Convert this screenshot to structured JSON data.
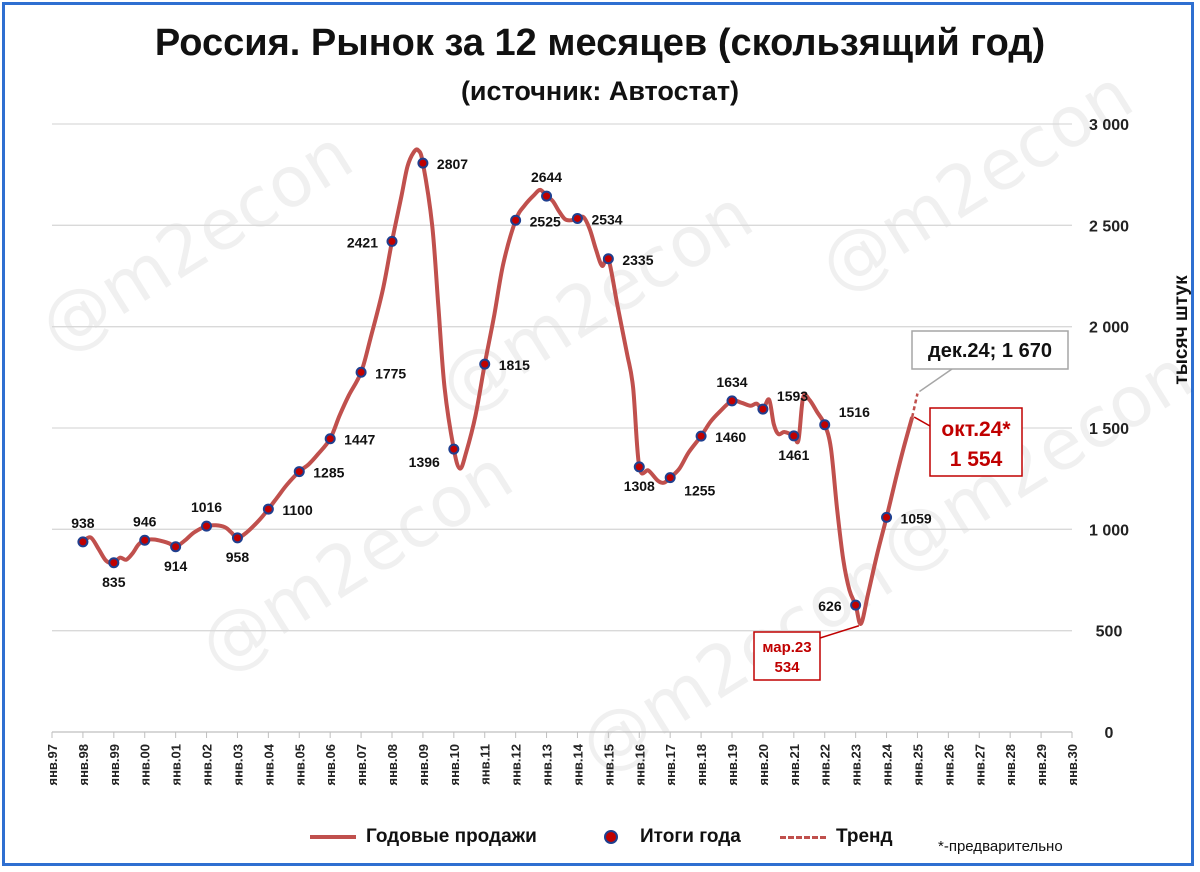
{
  "title": "Россия. Рынок за 12 месяцев (скользящий год)",
  "subtitle": "(источник: Автостат)",
  "watermark": "@m2econ",
  "legend": {
    "line": "Годовые продажи",
    "dots": "Итоги года",
    "trend": "Тренд"
  },
  "note": "*-предварительно",
  "colors": {
    "line": "#c0504d",
    "dot_fill": "#c00000",
    "dot_border": "#1f3f8f",
    "accent": "#c00000",
    "grid": "#d9d9d9",
    "frame": "#2e6fd1"
  },
  "chart_data": {
    "type": "line",
    "ylabel": "тысяч штук",
    "ylim": [
      0,
      3000
    ],
    "yticks": [
      0,
      500,
      1000,
      1500,
      2000,
      2500,
      3000
    ],
    "ytick_labels": [
      "0",
      "500",
      "1 000",
      "1 500",
      "2 000",
      "2 500",
      "3 000"
    ],
    "y_axis_side": "right",
    "x_range": [
      1997,
      2030
    ],
    "xtick_labels": [
      "янв.97",
      "янв.98",
      "янв.99",
      "янв.00",
      "янв.01",
      "янв.02",
      "янв.03",
      "янв.04",
      "янв.05",
      "янв.06",
      "янв.07",
      "янв.08",
      "янв.09",
      "янв.10",
      "янв.11",
      "янв.12",
      "янв.13",
      "янв.14",
      "янв.15",
      "янв.16",
      "янв.17",
      "янв.18",
      "янв.19",
      "янв.20",
      "янв.21",
      "янв.22",
      "янв.23",
      "янв.24",
      "янв.25",
      "янв.26",
      "янв.27",
      "янв.28",
      "янв.29",
      "янв.30"
    ],
    "series": [
      {
        "name": "Годовые продажи",
        "points": [
          [
            1998.0,
            938
          ],
          [
            1998.25,
            960
          ],
          [
            1998.5,
            905
          ],
          [
            1998.75,
            845
          ],
          [
            1999.0,
            835
          ],
          [
            1999.2,
            860
          ],
          [
            1999.4,
            850
          ],
          [
            1999.6,
            880
          ],
          [
            1999.8,
            925
          ],
          [
            2000.0,
            946
          ],
          [
            2000.3,
            950
          ],
          [
            2000.6,
            940
          ],
          [
            2000.8,
            930
          ],
          [
            2001.0,
            914
          ],
          [
            2001.3,
            945
          ],
          [
            2001.6,
            985
          ],
          [
            2002.0,
            1016
          ],
          [
            2002.3,
            1020
          ],
          [
            2002.6,
            1010
          ],
          [
            2002.8,
            985
          ],
          [
            2003.0,
            958
          ],
          [
            2003.3,
            985
          ],
          [
            2003.7,
            1045
          ],
          [
            2004.0,
            1100
          ],
          [
            2004.3,
            1160
          ],
          [
            2004.6,
            1220
          ],
          [
            2005.0,
            1285
          ],
          [
            2005.3,
            1320
          ],
          [
            2005.6,
            1370
          ],
          [
            2006.0,
            1447
          ],
          [
            2006.3,
            1560
          ],
          [
            2006.6,
            1660
          ],
          [
            2007.0,
            1775
          ],
          [
            2007.3,
            1940
          ],
          [
            2007.7,
            2180
          ],
          [
            2008.0,
            2421
          ],
          [
            2008.3,
            2640
          ],
          [
            2008.5,
            2790
          ],
          [
            2008.7,
            2860
          ],
          [
            2008.85,
            2870
          ],
          [
            2009.0,
            2807
          ],
          [
            2009.3,
            2500
          ],
          [
            2009.5,
            2100
          ],
          [
            2009.7,
            1700
          ],
          [
            2010.0,
            1396
          ],
          [
            2010.2,
            1300
          ],
          [
            2010.4,
            1380
          ],
          [
            2010.7,
            1560
          ],
          [
            2011.0,
            1815
          ],
          [
            2011.3,
            2050
          ],
          [
            2011.6,
            2310
          ],
          [
            2012.0,
            2525
          ],
          [
            2012.3,
            2600
          ],
          [
            2012.6,
            2650
          ],
          [
            2012.8,
            2675
          ],
          [
            2013.0,
            2644
          ],
          [
            2013.2,
            2620
          ],
          [
            2013.4,
            2570
          ],
          [
            2013.6,
            2530
          ],
          [
            2013.8,
            2525
          ],
          [
            2014.0,
            2534
          ],
          [
            2014.2,
            2540
          ],
          [
            2014.4,
            2480
          ],
          [
            2014.6,
            2380
          ],
          [
            2014.8,
            2300
          ],
          [
            2015.0,
            2335
          ],
          [
            2015.3,
            2100
          ],
          [
            2015.6,
            1870
          ],
          [
            2015.8,
            1700
          ],
          [
            2016.0,
            1308
          ],
          [
            2016.3,
            1290
          ],
          [
            2016.6,
            1240
          ],
          [
            2016.8,
            1230
          ],
          [
            2017.0,
            1255
          ],
          [
            2017.3,
            1300
          ],
          [
            2017.6,
            1380
          ],
          [
            2018.0,
            1460
          ],
          [
            2018.3,
            1530
          ],
          [
            2018.6,
            1580
          ],
          [
            2019.0,
            1634
          ],
          [
            2019.3,
            1625
          ],
          [
            2019.6,
            1610
          ],
          [
            2019.8,
            1620
          ],
          [
            2020.0,
            1593
          ],
          [
            2020.2,
            1640
          ],
          [
            2020.35,
            1520
          ],
          [
            2020.5,
            1470
          ],
          [
            2020.7,
            1480
          ],
          [
            2021.0,
            1461
          ],
          [
            2021.15,
            1440
          ],
          [
            2021.3,
            1650
          ],
          [
            2021.5,
            1640
          ],
          [
            2021.75,
            1580
          ],
          [
            2022.0,
            1516
          ],
          [
            2022.2,
            1400
          ],
          [
            2022.4,
            1100
          ],
          [
            2022.6,
            850
          ],
          [
            2022.8,
            700
          ],
          [
            2023.0,
            626
          ],
          [
            2023.17,
            534
          ],
          [
            2023.4,
            680
          ],
          [
            2023.7,
            880
          ],
          [
            2024.0,
            1059
          ],
          [
            2024.3,
            1250
          ],
          [
            2024.55,
            1400
          ],
          [
            2024.83,
            1554
          ]
        ]
      },
      {
        "name": "Итоги года",
        "points": [
          [
            1998,
            938
          ],
          [
            1999,
            835
          ],
          [
            2000,
            946
          ],
          [
            2001,
            914
          ],
          [
            2002,
            1016
          ],
          [
            2003,
            958
          ],
          [
            2004,
            1100
          ],
          [
            2005,
            1285
          ],
          [
            2006,
            1447
          ],
          [
            2007,
            1775
          ],
          [
            2008,
            2421
          ],
          [
            2009,
            2807
          ],
          [
            2010,
            1396
          ],
          [
            2011,
            1815
          ],
          [
            2012,
            2525
          ],
          [
            2013,
            2644
          ],
          [
            2014,
            2534
          ],
          [
            2015,
            2335
          ],
          [
            2016,
            1308
          ],
          [
            2017,
            1255
          ],
          [
            2018,
            1460
          ],
          [
            2019,
            1634
          ],
          [
            2020,
            1593
          ],
          [
            2021,
            1461
          ],
          [
            2022,
            1516
          ],
          [
            2023,
            626
          ],
          [
            2024,
            1059
          ]
        ]
      },
      {
        "name": "Тренд",
        "points": [
          [
            2024.83,
            1554
          ],
          [
            2025.0,
            1670
          ]
        ]
      }
    ],
    "data_labels": [
      {
        "x": 1998,
        "y": 938,
        "text": "938",
        "pos": "above"
      },
      {
        "x": 1999,
        "y": 835,
        "text": "835",
        "pos": "below"
      },
      {
        "x": 2000,
        "y": 946,
        "text": "946",
        "pos": "above"
      },
      {
        "x": 2001,
        "y": 914,
        "text": "914",
        "pos": "below"
      },
      {
        "x": 2002,
        "y": 1016,
        "text": "1016",
        "pos": "above"
      },
      {
        "x": 2003,
        "y": 958,
        "text": "958",
        "pos": "below"
      },
      {
        "x": 2004,
        "y": 1100,
        "text": "1100",
        "pos": "right"
      },
      {
        "x": 2005,
        "y": 1285,
        "text": "1285",
        "pos": "right"
      },
      {
        "x": 2006,
        "y": 1447,
        "text": "1447",
        "pos": "right"
      },
      {
        "x": 2007,
        "y": 1775,
        "text": "1775",
        "pos": "right"
      },
      {
        "x": 2008,
        "y": 2421,
        "text": "2421",
        "pos": "left"
      },
      {
        "x": 2009,
        "y": 2807,
        "text": "2807",
        "pos": "right"
      },
      {
        "x": 2010,
        "y": 1396,
        "text": "1396",
        "pos": "left-below"
      },
      {
        "x": 2011,
        "y": 1815,
        "text": "1815",
        "pos": "right"
      },
      {
        "x": 2012,
        "y": 2525,
        "text": "2525",
        "pos": "right"
      },
      {
        "x": 2013,
        "y": 2644,
        "text": "2644",
        "pos": "above"
      },
      {
        "x": 2014,
        "y": 2534,
        "text": "2534",
        "pos": "right"
      },
      {
        "x": 2015,
        "y": 2335,
        "text": "2335",
        "pos": "right"
      },
      {
        "x": 2016,
        "y": 1308,
        "text": "1308",
        "pos": "below"
      },
      {
        "x": 2017,
        "y": 1255,
        "text": "1255",
        "pos": "right-below"
      },
      {
        "x": 2018,
        "y": 1460,
        "text": "1460",
        "pos": "right"
      },
      {
        "x": 2019,
        "y": 1634,
        "text": "1634",
        "pos": "above"
      },
      {
        "x": 2020,
        "y": 1593,
        "text": "1593",
        "pos": "right-above"
      },
      {
        "x": 2021,
        "y": 1461,
        "text": "1461",
        "pos": "below"
      },
      {
        "x": 2022,
        "y": 1516,
        "text": "1516",
        "pos": "right-above"
      },
      {
        "x": 2023,
        "y": 626,
        "text": "626",
        "pos": "left"
      },
      {
        "x": 2024,
        "y": 1059,
        "text": "1059",
        "pos": "right"
      }
    ],
    "callouts": [
      {
        "x": 2025.0,
        "y": 1670,
        "lines": [
          "дек.24; 1 670"
        ],
        "style": "gray"
      },
      {
        "x": 2024.83,
        "y": 1554,
        "lines": [
          "окт.24*",
          "1 554"
        ],
        "style": "red"
      },
      {
        "x": 2023.17,
        "y": 534,
        "lines": [
          "мар.23",
          "534"
        ],
        "style": "red-small"
      }
    ],
    "grid": true,
    "legend_position": "bottom"
  }
}
